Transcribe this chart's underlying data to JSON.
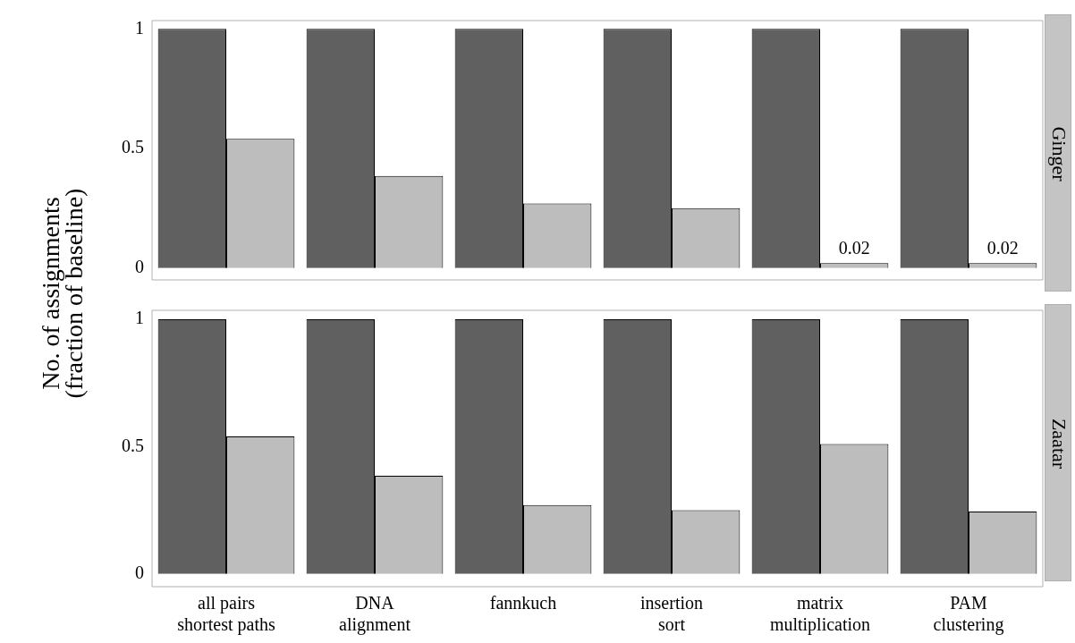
{
  "chart_data": [
    {
      "type": "bar",
      "title": "Ginger",
      "ylabel": "No. of assignments\n(fraction of baseline)",
      "series": [
        {
          "color": "#606060",
          "values": [
            1,
            1,
            1,
            1,
            1,
            1
          ]
        },
        {
          "color": "#bdbdbd",
          "values": [
            0.54,
            0.385,
            0.27,
            0.25,
            0.02,
            0.02
          ],
          "value_labels": [
            null,
            null,
            null,
            null,
            "0.02",
            "0.02"
          ]
        }
      ],
      "ylim": [
        -0.05,
        1.035
      ],
      "yticks": [
        0,
        0.5,
        1
      ],
      "grid": false,
      "legend": false,
      "tick_labels": "y"
    },
    {
      "type": "bar",
      "title": "Zaatar",
      "categories": [
        "all pairs\nshortest paths",
        "DNA\nalignment",
        "fannkuch",
        "insertion\nsort",
        "matrix\nmultiplication",
        "PAM\nclustering"
      ],
      "series": [
        {
          "color": "#606060",
          "values": [
            1,
            1,
            1,
            1,
            1,
            1
          ]
        },
        {
          "color": "#bdbdbd",
          "values": [
            0.54,
            0.385,
            0.27,
            0.25,
            0.51,
            0.245
          ]
        }
      ],
      "ylim": [
        -0.05,
        1.035
      ],
      "yticks": [
        0,
        0.5,
        1
      ],
      "grid": false,
      "legend": false
    }
  ]
}
